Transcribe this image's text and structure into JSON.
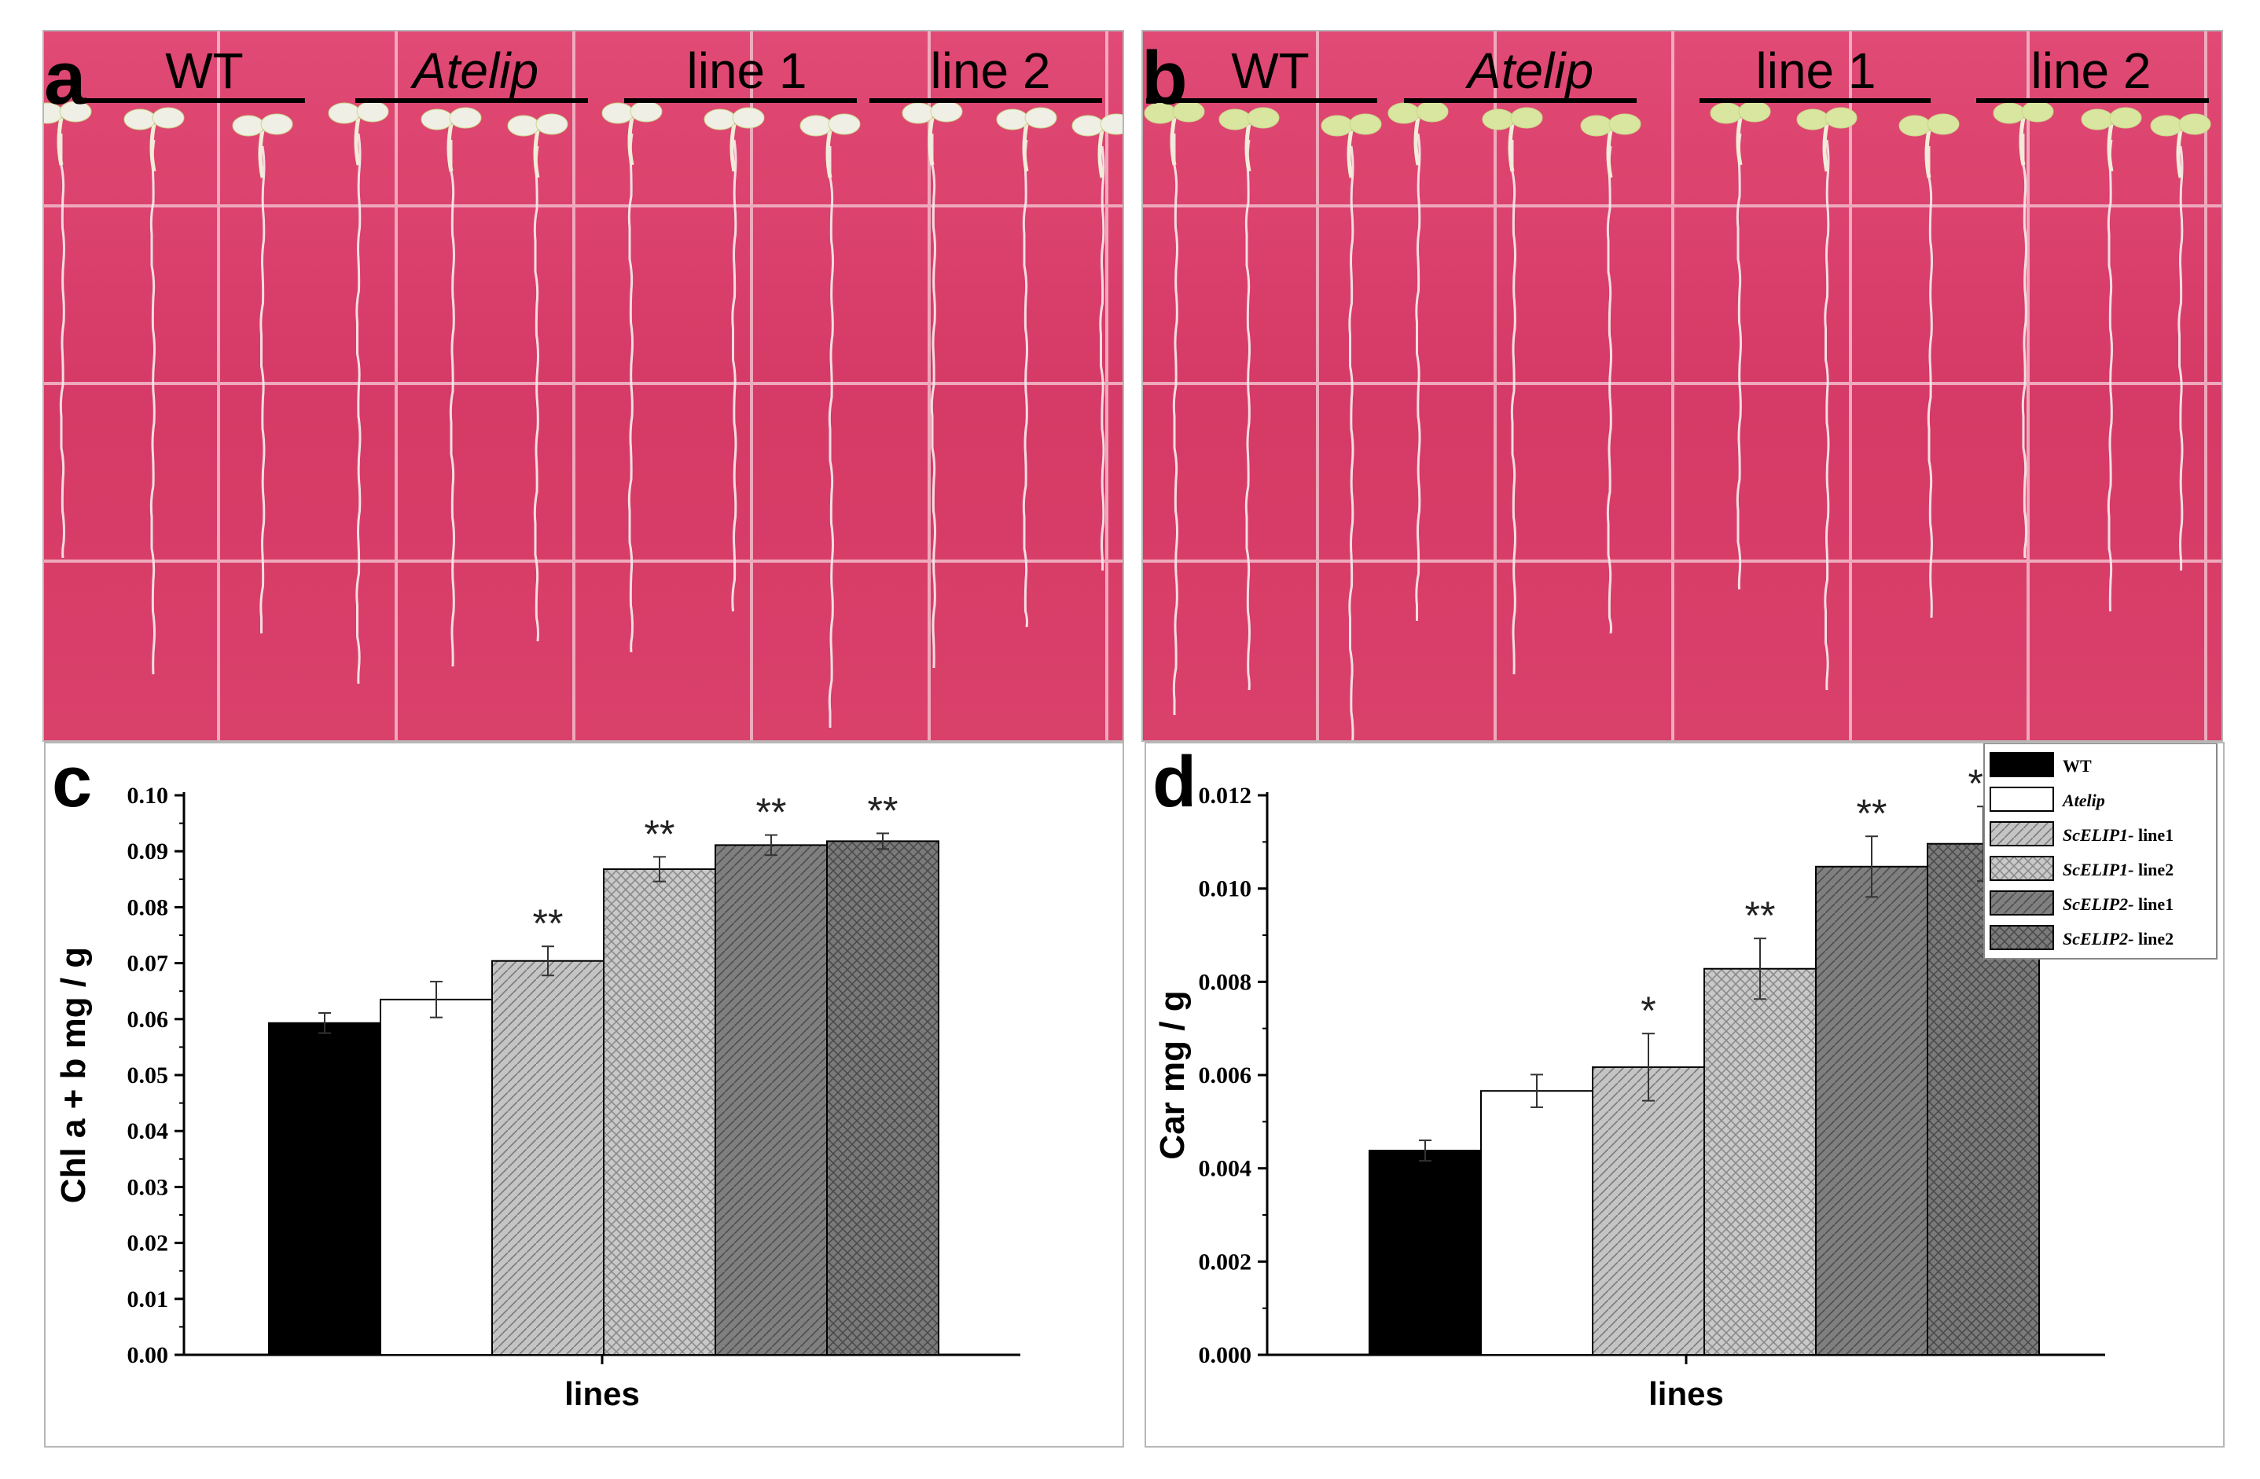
{
  "panels": {
    "a": {
      "letter": "a",
      "groups": [
        "WT",
        "Atelip",
        "line 1",
        "line 2"
      ]
    },
    "b": {
      "letter": "b",
      "groups": [
        "WT",
        "Atelip",
        "line 1",
        "line 2"
      ]
    }
  },
  "colors": {
    "plate": "#d83c68",
    "plate_dark": "#c5305a",
    "grid": "#f2b8c8",
    "bar_dark": "#000000",
    "bar_white": "#ffffff",
    "bar_light_gray": "#c8c8c8",
    "bar_mid_gray": "#7d7d7d"
  },
  "chart_data": [
    {
      "type": "bar",
      "panel": "c",
      "title": "",
      "xlabel": "lines",
      "ylabel": "Chl a + b mg / g",
      "ylim": [
        0,
        0.1
      ],
      "yticks": [
        "0.00",
        "0.01",
        "0.02",
        "0.03",
        "0.04",
        "0.05",
        "0.06",
        "0.07",
        "0.08",
        "0.09",
        "0.10"
      ],
      "categories": [
        "WT",
        "Atelip",
        "ScELIP1- line1",
        "ScELIP1- line2",
        "ScELIP2- line1",
        "ScELIP2- line2"
      ],
      "values": [
        0.0593,
        0.0635,
        0.0704,
        0.0868,
        0.0911,
        0.0918
      ],
      "errors": [
        0.0018,
        0.0032,
        0.0026,
        0.0022,
        0.0018,
        0.0014
      ],
      "significance": [
        "",
        "",
        "**",
        "**",
        "**",
        "**"
      ]
    },
    {
      "type": "bar",
      "panel": "d",
      "title": "",
      "xlabel": "lines",
      "ylabel": "Car mg / g",
      "ylim": [
        0,
        0.012
      ],
      "yticks": [
        "0.000",
        "0.002",
        "0.004",
        "0.006",
        "0.008",
        "0.010",
        "0.012"
      ],
      "categories": [
        "WT",
        "Atelip",
        "ScELIP1- line1",
        "ScELIP1- line2",
        "ScELIP2- line1",
        "ScELIP2- line2"
      ],
      "values": [
        0.00438,
        0.00566,
        0.00617,
        0.00828,
        0.01047,
        0.01096
      ],
      "errors": [
        0.00022,
        0.00035,
        0.00072,
        0.00065,
        0.00065,
        0.0008
      ],
      "significance": [
        "",
        "",
        "*",
        "**",
        "**",
        "**"
      ],
      "legend": {
        "position": "top-right",
        "entries": [
          {
            "label": "WT",
            "italic_part": "",
            "rest": "WT"
          },
          {
            "label": "Atelip",
            "italic_part": "Atelip",
            "rest": ""
          },
          {
            "label": "ScELIP1- line1",
            "italic_part": "ScELIP1-",
            "rest": " line1"
          },
          {
            "label": "ScELIP1- line2",
            "italic_part": "ScELIP1-",
            "rest": " line2"
          },
          {
            "label": "ScELIP2- line1",
            "italic_part": "ScELIP2-",
            "rest": " line1"
          },
          {
            "label": "ScELIP2- line2",
            "italic_part": "ScELIP2-",
            "rest": " line2"
          }
        ]
      }
    }
  ],
  "chart_letters": {
    "c": "c",
    "d": "d"
  }
}
